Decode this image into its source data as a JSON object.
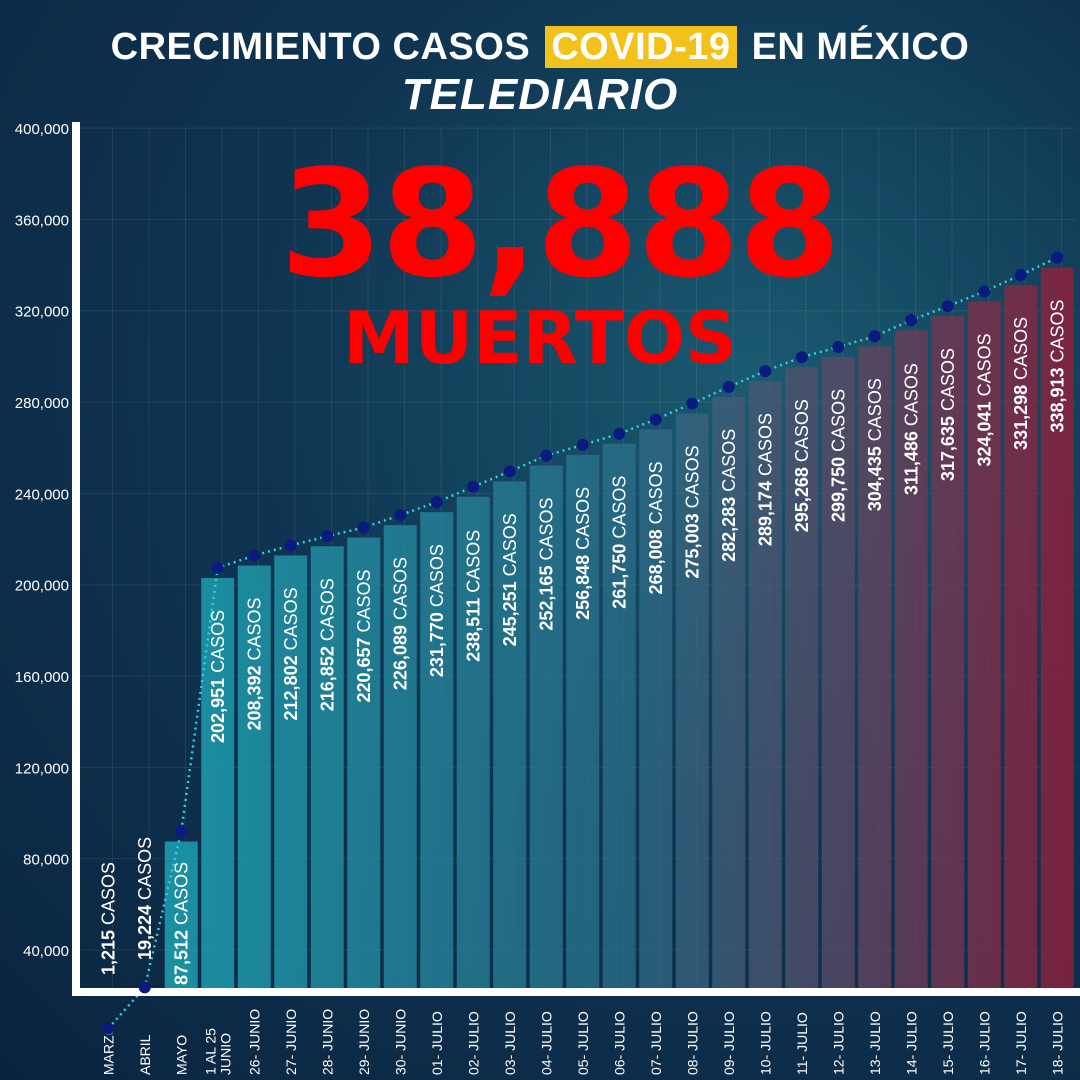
{
  "header": {
    "title_before": "CRECIMIENTO CASOS",
    "title_highlight": "COVID-19",
    "title_after": "EN MÉXICO",
    "brand": "TELEDIARIO"
  },
  "highlight": {
    "number": "38,888",
    "label": "MUERTOS"
  },
  "colors": {
    "highlight_bg": "#f2c21b",
    "deaths_text": "#ff0000",
    "bar_start": "#1aa6b5",
    "bar_end": "#8e1f3a",
    "point": "#0a1a80",
    "trend_line": "#2fd1e0"
  },
  "chart_data": {
    "type": "bar",
    "title": "CRECIMIENTO CASOS COVID-19 EN MÉXICO",
    "categories": [
      "MARZO",
      "ABRIL",
      "MAYO",
      "1 AL 25 JUNIO",
      "26- JUNIO",
      "27- JUNIO",
      "28- JUNIO",
      "29- JUNIO",
      "30- JUNIO",
      "01- JULIO",
      "02- JULIO",
      "03- JULIO",
      "04- JULIO",
      "05- JULIO",
      "06- JULIO",
      "07- JULIO",
      "08- JULIO",
      "09- JULIO",
      "10- JULIO",
      "11- JULIO",
      "12- JULIO",
      "13- JULIO",
      "14- JULIO",
      "15- JULIO",
      "16- JULIO",
      "17- JULIO",
      "18- JULIO"
    ],
    "values": [
      1215,
      19224,
      87512,
      202951,
      208392,
      212802,
      216852,
      220657,
      226089,
      231770,
      238511,
      245251,
      252165,
      256848,
      261750,
      268008,
      275003,
      282283,
      289174,
      295268,
      299750,
      304435,
      311486,
      317635,
      324041,
      331298,
      338913
    ],
    "value_labels": [
      "1,215",
      "19,224",
      "87,512",
      "202,951",
      "208,392",
      "212,802",
      "216,852",
      "220,657",
      "226,089",
      "231,770",
      "238,511",
      "245,251",
      "252,165",
      "256,848",
      "261,750",
      "268,008",
      "275,003",
      "282,283",
      "289,174",
      "295,268",
      "299,750",
      "304,435",
      "311,486",
      "317,635",
      "324,041",
      "331,298",
      "338,913"
    ],
    "value_suffix": "CASOS",
    "y_ticks": [
      40000,
      80000,
      120000,
      160000,
      200000,
      240000,
      280000,
      320000,
      360000,
      400000
    ],
    "y_tick_labels": [
      "40,000",
      "80,000",
      "120,000",
      "160,000",
      "200,000",
      "240,000",
      "280,000",
      "320,000",
      "360,000",
      "400,000"
    ],
    "ylim": [
      0,
      400000
    ],
    "xlabel": "",
    "ylabel": "",
    "grid": true,
    "trend_line": "dotted"
  }
}
